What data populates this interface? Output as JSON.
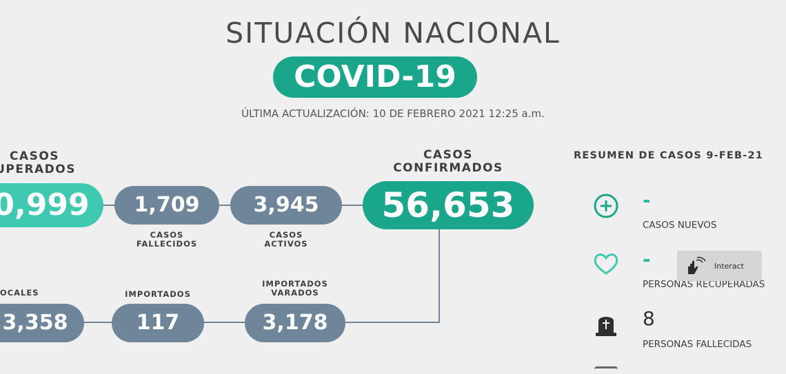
{
  "header": {
    "title": "SITUACIÓN NACIONAL",
    "badge": "COVID-19",
    "updated": "ÚLTIMA ACTUALIZACIÓN: 10 DE FEBRERO 2021 12:25 a.m."
  },
  "stats": {
    "recuperados": {
      "label_top": "CASOS",
      "label_bottom": "UPERADOS",
      "value": "0,999"
    },
    "fallecidos": {
      "value": "1,709",
      "label_top": "CASOS",
      "label_bottom": "FALLECIDOS"
    },
    "activos": {
      "value": "3,945",
      "label_top": "CASOS",
      "label_bottom": "ACTIVOS"
    },
    "confirmados": {
      "label_top": "CASOS",
      "label_bottom": "CONFIRMADOS",
      "value": "56,653"
    },
    "locales": {
      "label": "LOCALES",
      "value": "3,358"
    },
    "importados": {
      "label": "IMPORTADOS",
      "value": "117"
    },
    "varados": {
      "label_top": "IMPORTADOS",
      "label_bottom": "VARADOS",
      "value": "3,178"
    }
  },
  "resumen": {
    "title": "RESUMEN DE CASOS 9-FEB-21",
    "items": [
      {
        "icon": "plus-circle-icon",
        "value": "-",
        "label": "CASOS NUEVOS"
      },
      {
        "icon": "heart-icon",
        "value": "-",
        "label": "PERSONAS RECUPERADAS"
      },
      {
        "icon": "tombstone-icon",
        "value": "8",
        "label": "PERSONAS FALLECIDAS"
      }
    ]
  },
  "widget": {
    "label": "Interact",
    "icon": "hand-pointer-icon"
  },
  "colors": {
    "teal": "#1aa68a",
    "teal_light": "#3fc9b0",
    "slate": "#6e859a",
    "background": "#efefef"
  }
}
